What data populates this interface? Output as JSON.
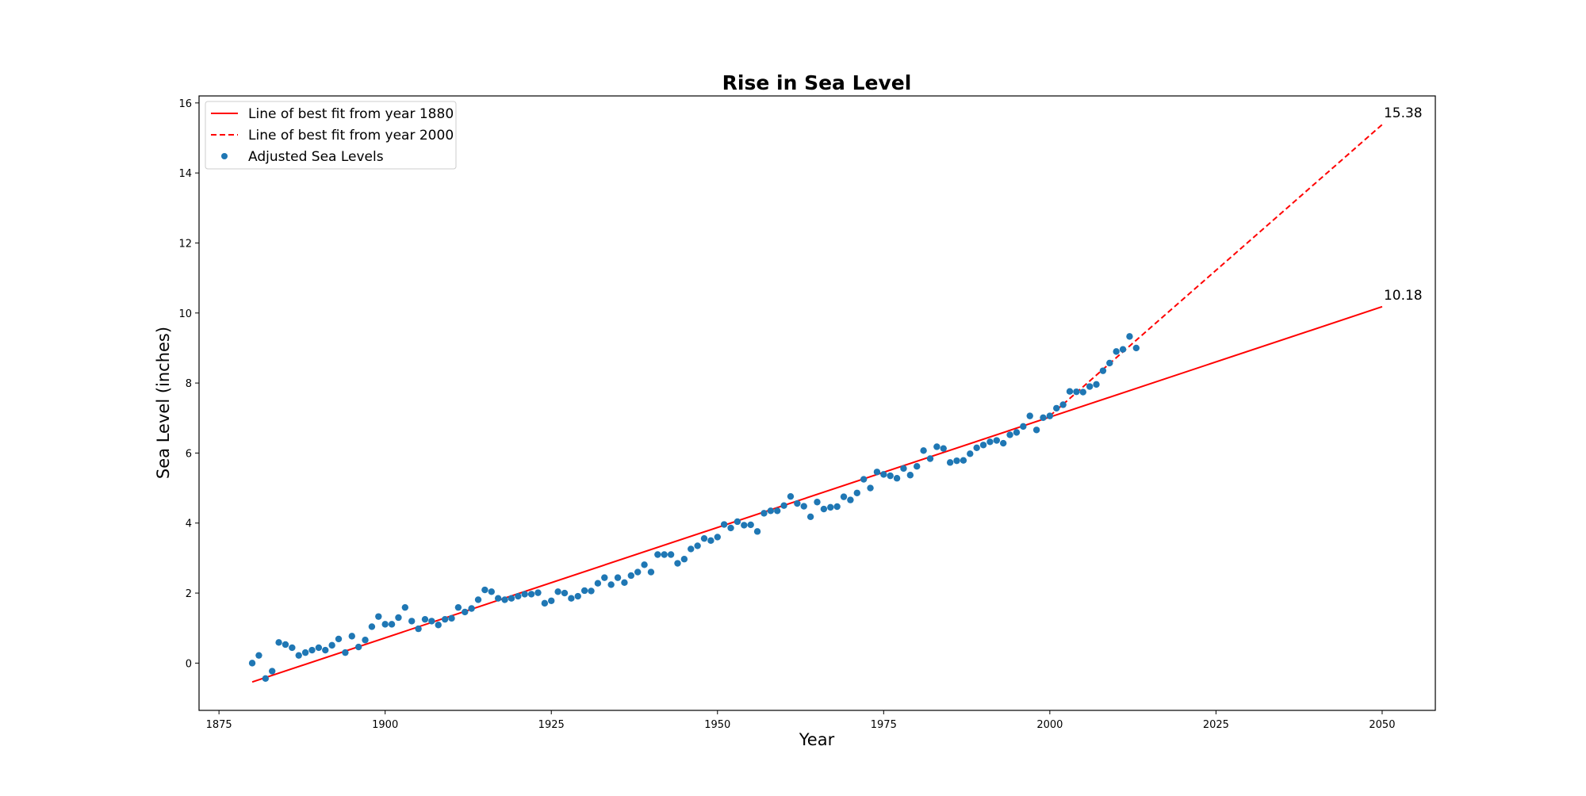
{
  "chart_data": {
    "type": "scatter",
    "title": "Rise in Sea Level",
    "xlabel": "Year",
    "ylabel": "Sea Level (inches)",
    "xlim": [
      1872,
      2058
    ],
    "ylim": [
      -1.35,
      16.2
    ],
    "xticks": [
      1875,
      1900,
      1925,
      1950,
      1975,
      2000,
      2025,
      2050
    ],
    "yticks": [
      0,
      2,
      4,
      6,
      8,
      10,
      12,
      14,
      16
    ],
    "grid": false,
    "legend_position": "top-left",
    "scatter": {
      "name": "Adjusted Sea Levels",
      "color": "#1f77b4",
      "x": [
        1880,
        1881,
        1882,
        1883,
        1884,
        1885,
        1886,
        1887,
        1888,
        1889,
        1890,
        1891,
        1892,
        1893,
        1894,
        1895,
        1896,
        1897,
        1898,
        1899,
        1900,
        1901,
        1902,
        1903,
        1904,
        1905,
        1906,
        1907,
        1908,
        1909,
        1910,
        1911,
        1912,
        1913,
        1914,
        1915,
        1916,
        1917,
        1918,
        1919,
        1920,
        1921,
        1922,
        1923,
        1924,
        1925,
        1926,
        1927,
        1928,
        1929,
        1930,
        1931,
        1932,
        1933,
        1934,
        1935,
        1936,
        1937,
        1938,
        1939,
        1940,
        1941,
        1942,
        1943,
        1944,
        1945,
        1946,
        1947,
        1948,
        1949,
        1950,
        1951,
        1952,
        1953,
        1954,
        1955,
        1956,
        1957,
        1958,
        1959,
        1960,
        1961,
        1962,
        1963,
        1964,
        1965,
        1966,
        1967,
        1968,
        1969,
        1970,
        1971,
        1972,
        1973,
        1974,
        1975,
        1976,
        1977,
        1978,
        1979,
        1980,
        1981,
        1982,
        1983,
        1984,
        1985,
        1986,
        1987,
        1988,
        1989,
        1990,
        1991,
        1992,
        1993,
        1994,
        1995,
        1996,
        1997,
        1998,
        1999,
        2000,
        2001,
        2002,
        2003,
        2004,
        2005,
        2006,
        2007,
        2008,
        2009,
        2010,
        2011,
        2012,
        2013
      ],
      "y": [
        0.0,
        0.22,
        -0.44,
        -0.23,
        0.59,
        0.53,
        0.44,
        0.22,
        0.3,
        0.37,
        0.44,
        0.37,
        0.51,
        0.69,
        0.3,
        0.77,
        0.46,
        0.66,
        1.04,
        1.33,
        1.11,
        1.11,
        1.3,
        1.59,
        1.2,
        0.98,
        1.25,
        1.2,
        1.09,
        1.25,
        1.28,
        1.59,
        1.46,
        1.56,
        1.81,
        2.09,
        2.04,
        1.85,
        1.81,
        1.85,
        1.91,
        1.97,
        1.97,
        2.01,
        1.71,
        1.78,
        2.04,
        2.0,
        1.85,
        1.91,
        2.07,
        2.06,
        2.28,
        2.44,
        2.24,
        2.44,
        2.3,
        2.5,
        2.6,
        2.81,
        2.6,
        3.1,
        3.1,
        3.1,
        2.85,
        2.97,
        3.26,
        3.35,
        3.56,
        3.5,
        3.6,
        3.96,
        3.86,
        4.04,
        3.94,
        3.95,
        3.76,
        4.28,
        4.35,
        4.35,
        4.5,
        4.76,
        4.56,
        4.48,
        4.18,
        4.6,
        4.4,
        4.45,
        4.47,
        4.75,
        4.66,
        4.86,
        5.25,
        5.0,
        5.46,
        5.39,
        5.35,
        5.28,
        5.56,
        5.37,
        5.62,
        6.07,
        5.84,
        6.18,
        6.13,
        5.73,
        5.78,
        5.79,
        5.98,
        6.15,
        6.23,
        6.32,
        6.36,
        6.28,
        6.52,
        6.59,
        6.76,
        7.06,
        6.66,
        7.01,
        7.06,
        7.28,
        7.38,
        7.76,
        7.75,
        7.74,
        7.9,
        7.96,
        8.35,
        8.57,
        8.9,
        8.96,
        9.33,
        9.0
      ]
    },
    "lines": [
      {
        "name": "Line of best fit from year 1880",
        "color": "#ff0000",
        "style": "solid",
        "x": [
          1880,
          2050
        ],
        "y": [
          -0.54,
          10.18
        ]
      },
      {
        "name": "Line of best fit from year 2000",
        "color": "#ff0000",
        "style": "dashed",
        "x": [
          2000,
          2050
        ],
        "y": [
          7.06,
          15.38
        ]
      }
    ],
    "annotations": [
      {
        "text": "15.38",
        "x": 2050,
        "y": 15.38
      },
      {
        "text": "10.18",
        "x": 2050,
        "y": 10.18
      }
    ]
  }
}
